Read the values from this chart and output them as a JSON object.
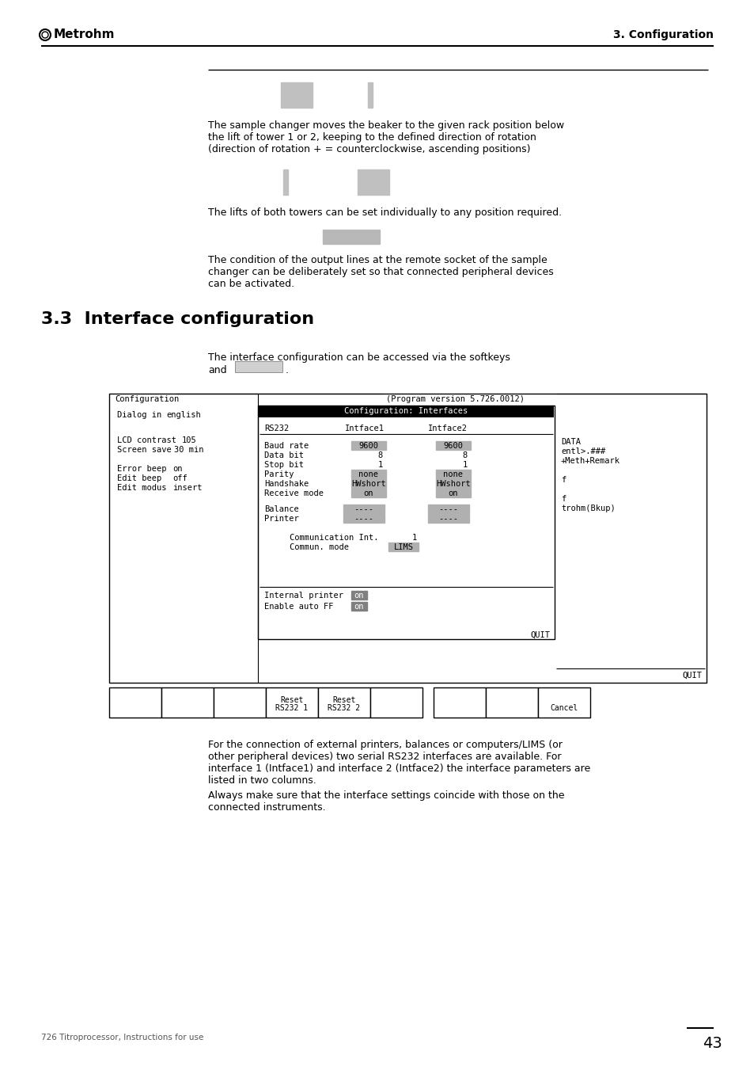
{
  "page_title_right": "3. Configuration",
  "section_title": "3.3  Interface configuration",
  "bg_color": "#ffffff",
  "para1_line1": "The sample changer moves the beaker to the given rack position below",
  "para1_line2": "the lift of tower 1 or 2, keeping to the defined direction of rotation",
  "para1_line3": "(direction of rotation + = counterclockwise, ascending positions)",
  "para2_line1": "The lifts of both towers can be set individually to any position required.",
  "para3_line1": "The condition of the output lines at the remote socket of the sample",
  "para3_line2": "changer can be deliberately set so that connected peripheral devices",
  "para3_line3": "can be activated.",
  "softkey_text1": "The interface configuration can be accessed via the softkeys",
  "softkey_text2": "and",
  "softkey_text3": ".",
  "config_header": "Configuration",
  "config_version": "(Program version 5.726.0012)",
  "dialog_label": "Dialog in",
  "dialog_value": "english",
  "lcd_label": "LCD contrast",
  "lcd_value": "105",
  "screen_label": "Screen save",
  "screen_value": "30 min",
  "error_label": "Error beep",
  "error_value": "on",
  "edit_beep_label": "Edit beep",
  "edit_beep_value": "off",
  "edit_modus_label": "Edit modus",
  "edit_modus_value": "insert",
  "conf_intface_title": "Configuration: Interfaces",
  "rs232_header": "RS232",
  "intface1_header": "Intface1",
  "intface2_header": "Intface2",
  "baud_label": "Baud rate",
  "baud_val1": "9600",
  "baud_val2": "9600",
  "data_label": "Data bit",
  "data_val1": "8",
  "data_val2": "8",
  "stop_label": "Stop bit",
  "stop_val1": "1",
  "stop_val2": "1",
  "parity_label": "Parity",
  "parity_val1": "none",
  "parity_val2": "none",
  "handshake_label": "Handshake",
  "handshake_val1": "HWshort",
  "handshake_val2": "HWshort",
  "receive_label": "Receive mode",
  "receive_val1": "on",
  "receive_val2": "on",
  "balance_label": "Balance",
  "balance_val1": "----",
  "balance_val2": "----",
  "printer_label": "Printer",
  "printer_val1": "----",
  "printer_val2": "----",
  "comm_int_label": "Communication Int.",
  "comm_int_val": "1",
  "comm_mode_label": "Commun. mode",
  "comm_mode_val": "LIMS",
  "int_printer_label": "Internal printer",
  "int_printer_val": "on",
  "enable_ff_label": "Enable auto FF",
  "enable_ff_val": "on",
  "data_right1": "DATA",
  "data_right2": "entl>.###",
  "data_right3": "+Meth+Remark",
  "data_right4": "f",
  "data_right5": "f",
  "data_right6": "trohm(Bkup)",
  "quit_left": "QUIT",
  "quit_right": "QUIT",
  "btn_reset1_l1": "Reset",
  "btn_reset1_l2": "RS232 1",
  "btn_reset2_l1": "Reset",
  "btn_reset2_l2": "RS232 2",
  "btn_cancel": "Cancel",
  "footer_text": "726 Titroprocessor, Instructions for use",
  "page_number": "43",
  "desc_line1": "For the connection of external printers, balances or computers/LIMS (or",
  "desc_line2": "other peripheral devices) two serial RS232 interfaces are available. For",
  "desc_line3": "interface 1 (Intface1) and interface 2 (Intface2) the interface parameters are",
  "desc_line4": "listed in two columns.",
  "desc_line5": "Always make sure that the interface settings coincide with those on the",
  "desc_line6": "connected instruments."
}
